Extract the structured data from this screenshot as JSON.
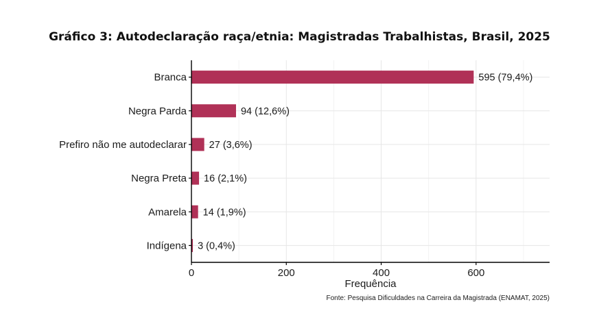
{
  "chart_data": {
    "type": "bar",
    "orientation": "horizontal",
    "title": "Gráfico 3: Autodeclaração raça/etnia: Magistradas Trabalhistas, Brasil, 2025",
    "categories": [
      "Branca",
      "Negra Parda",
      "Prefiro não me autodeclarar",
      "Negra Preta",
      "Amarela",
      "Indígena"
    ],
    "category_labels": [
      "Branca",
      "Negra Parda",
      "Prefiro não me autodeclarar",
      "Negra Preta",
      "Amarela",
      "Indígena"
    ],
    "values": [
      595,
      94,
      27,
      16,
      14,
      3
    ],
    "data_labels": [
      "595 (79,4%)",
      "94 (12,6%)",
      "27 (3,6%)",
      "16 (2,1%)",
      "14 (1,9%)",
      "3 (0,4%)"
    ],
    "xlabel": "Frequência",
    "ylabel": "",
    "xlim": [
      0,
      755
    ],
    "xticks": [
      0,
      200,
      400,
      600
    ],
    "grid": true,
    "bar_color": "#b03157",
    "caption": "Fonte: Pesquisa Dificuldades na Carreira da Magistrada (ENAMAT, 2025)"
  }
}
